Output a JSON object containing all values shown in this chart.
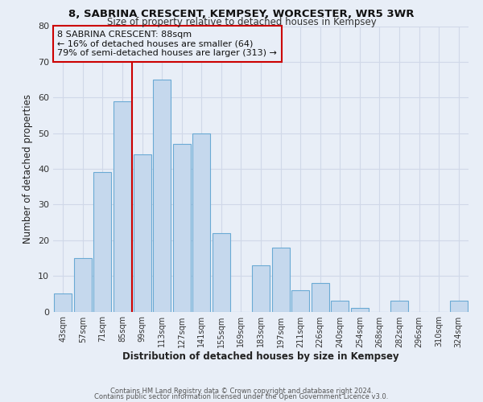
{
  "title": "8, SABRINA CRESCENT, KEMPSEY, WORCESTER, WR5 3WR",
  "subtitle": "Size of property relative to detached houses in Kempsey",
  "xlabel": "Distribution of detached houses by size in Kempsey",
  "ylabel": "Number of detached properties",
  "bar_labels": [
    "43sqm",
    "57sqm",
    "71sqm",
    "85sqm",
    "99sqm",
    "113sqm",
    "127sqm",
    "141sqm",
    "155sqm",
    "169sqm",
    "183sqm",
    "197sqm",
    "211sqm",
    "226sqm",
    "240sqm",
    "254sqm",
    "268sqm",
    "282sqm",
    "296sqm",
    "310sqm",
    "324sqm"
  ],
  "bar_values": [
    5,
    15,
    39,
    59,
    44,
    65,
    47,
    50,
    22,
    0,
    13,
    18,
    6,
    8,
    3,
    1,
    0,
    3,
    0,
    0,
    3
  ],
  "bar_color": "#c5d8ed",
  "bar_edge_color": "#6aaad4",
  "background_color": "#e8eef7",
  "grid_color": "#d0d8e8",
  "annotation_line1": "8 SABRINA CRESCENT: 88sqm",
  "annotation_line2": "← 16% of detached houses are smaller (64)",
  "annotation_line3": "79% of semi-detached houses are larger (313) →",
  "annotation_box_color": "#cc0000",
  "vline_x_index": 3.5,
  "vline_color": "#cc0000",
  "ylim": [
    0,
    80
  ],
  "yticks": [
    0,
    10,
    20,
    30,
    40,
    50,
    60,
    70,
    80
  ],
  "footer_line1": "Contains HM Land Registry data © Crown copyright and database right 2024.",
  "footer_line2": "Contains public sector information licensed under the Open Government Licence v3.0."
}
